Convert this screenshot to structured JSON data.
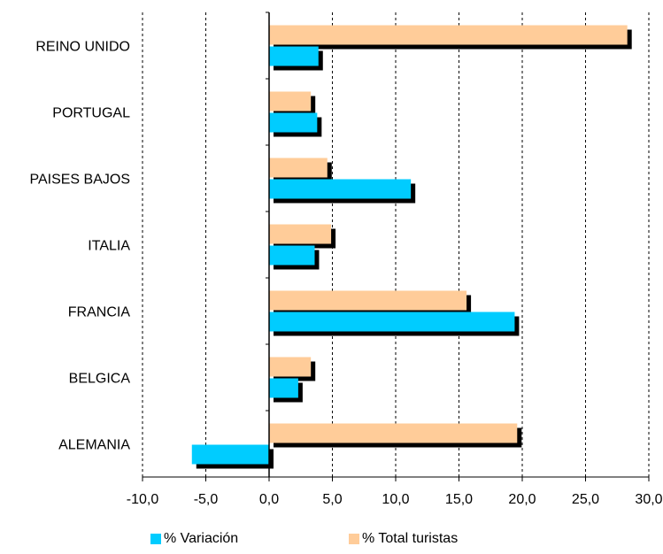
{
  "chart_data": {
    "type": "bar",
    "orientation": "horizontal",
    "categories": [
      "REINO UNIDO",
      "PORTUGAL",
      "PAISES BAJOS",
      "ITALIA",
      "FRANCIA",
      "BELGICA",
      "ALEMANIA"
    ],
    "series": [
      {
        "name": "% Total turistas",
        "color": "#FFCC99",
        "values": [
          28.3,
          3.3,
          4.6,
          4.9,
          15.6,
          3.3,
          19.6
        ]
      },
      {
        "name": "% Variación",
        "color": "#00CCFF",
        "values": [
          3.9,
          3.8,
          11.2,
          3.6,
          19.4,
          2.3,
          -6.1
        ]
      }
    ],
    "xlim": [
      -10,
      30
    ],
    "xticks": [
      "-10,0",
      "-5,0",
      "0,0",
      "5,0",
      "10,0",
      "15,0",
      "20,0",
      "25,0",
      "30,0"
    ],
    "negative_tick_color": "#FF0000",
    "grid": true,
    "legend": "bottom",
    "title": "",
    "xlabel": "",
    "ylabel": ""
  }
}
